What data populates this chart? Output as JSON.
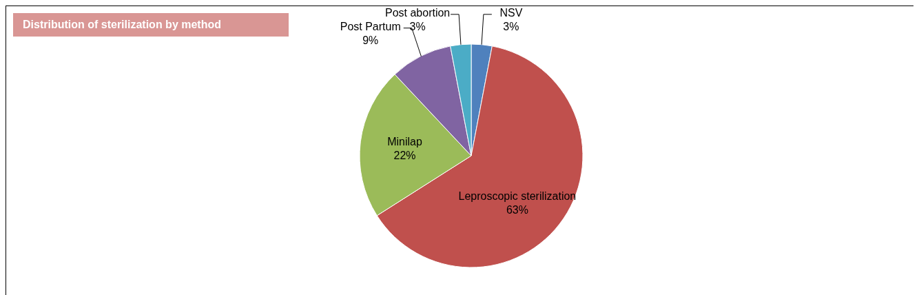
{
  "chart_data": {
    "type": "pie",
    "title": "Distribution of sterilization by method",
    "categories": [
      "NSV",
      "Leproscopic sterilization",
      "Minilap",
      "Post Partum",
      "Post abortion"
    ],
    "values": [
      3,
      63,
      22,
      9,
      3
    ],
    "colors": [
      "#4f81bd",
      "#c0504d",
      "#9bbb59",
      "#8064a2",
      "#4bacc6"
    ],
    "value_labels": [
      "3%",
      "63%",
      "22%",
      "9%",
      "3%"
    ],
    "legend": false
  }
}
